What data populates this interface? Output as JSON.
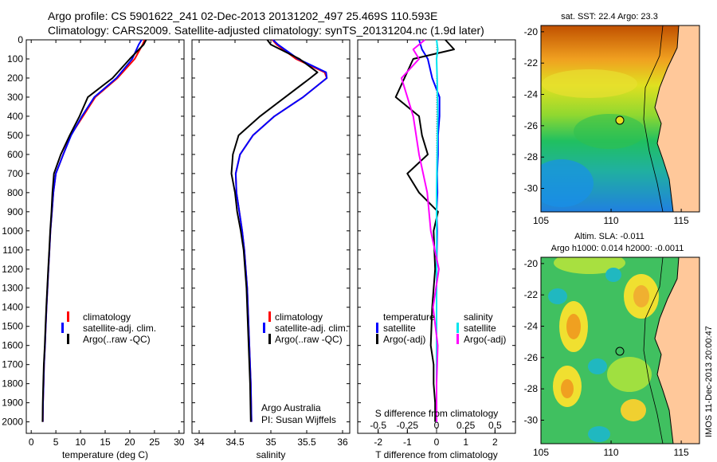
{
  "header": {
    "title_line1": "Argo profile: CS 5901622_241 02-Dec-2013 20131202_497 25.469S 110.593E",
    "title_line2": "Climatology: CARS2009. Satellite-adjusted climatology: synTS_20131204.nc (1.9d later)"
  },
  "colors": {
    "climatology": "#ff0000",
    "satellite": "#0000ff",
    "argo": "#000000",
    "sal_satellite": "#00e5ee",
    "sal_argo": "#ff00ff",
    "land": "#ffc89a"
  },
  "depth_ticks": [
    "0",
    "100",
    "200",
    "300",
    "400",
    "500",
    "600",
    "700",
    "800",
    "900",
    "1000",
    "1100",
    "1200",
    "1300",
    "1400",
    "1500",
    "1600",
    "1700",
    "1800",
    "1900",
    "2000"
  ],
  "panel_temp": {
    "xlabel": "temperature (deg C)",
    "xticks": [
      "0",
      "5",
      "10",
      "15",
      "20",
      "25",
      "30"
    ],
    "legend": [
      "climatology",
      "satellite-adj. clim.",
      "Argo(..raw -QC)"
    ]
  },
  "panel_sal": {
    "xlabel": "salinity",
    "xticks": [
      "34",
      "34.5",
      "35",
      "35.5",
      "36"
    ],
    "legend": [
      "climatology",
      "satellite-adj. clim.",
      "Argo(..raw -QC)"
    ],
    "credit_line1": "Argo Australia",
    "credit_line2": "PI: Susan Wijffels"
  },
  "panel_diff": {
    "xlabel": "T difference from climatology",
    "top_label": "S difference from climatology",
    "t_ticks": [
      "-2",
      "-1",
      "0",
      "1",
      "2"
    ],
    "s_ticks": [
      "-0.5",
      "-0.25",
      "0",
      "0.25",
      "0.5"
    ],
    "legend_temp_title": "temperature",
    "legend_sal_title": "salinity",
    "legend_temp": [
      "satellite",
      "Argo(-adj)"
    ],
    "legend_sal": [
      "satellite",
      "Argo(-adj)"
    ]
  },
  "map_sst": {
    "title": "sat. SST: 22.4  Argo: 23.3",
    "yticks": [
      "-20",
      "-22",
      "-24",
      "-26",
      "-28",
      "-30"
    ],
    "xticks": [
      "105",
      "110",
      "115"
    ]
  },
  "map_sla": {
    "title_line1": "Altim. SLA: -0.011",
    "title_line2": "Argo h1000: 0.014  h2000: -0.0011",
    "yticks": [
      "-20",
      "-22",
      "-24",
      "-26",
      "-28",
      "-30"
    ],
    "xticks": [
      "105",
      "110",
      "115"
    ]
  },
  "side_stamp": "IMOS 11-Dec-2013 20:00:47",
  "chart_data": [
    {
      "type": "line",
      "xlabel": "temperature (deg C)",
      "ylabel": "",
      "xlim": [
        -1,
        31
      ],
      "ylim": [
        2060,
        0
      ],
      "series": [
        {
          "name": "climatology",
          "x": [
            23.0,
            22.6,
            21.0,
            17.5,
            13.0,
            10.5,
            8.0,
            6.5,
            5.0,
            4.5,
            4.2,
            3.9,
            3.7,
            3.5,
            3.3,
            3.1,
            2.95,
            2.8,
            2.6,
            2.5,
            2.4,
            2.35
          ],
          "y": [
            0,
            25,
            100,
            200,
            300,
            400,
            500,
            600,
            700,
            800,
            900,
            1000,
            1100,
            1200,
            1300,
            1400,
            1500,
            1600,
            1700,
            1800,
            1900,
            2000
          ]
        },
        {
          "name": "satellite-adj. clim.",
          "x": [
            22.4,
            21.8,
            20.5,
            17.3,
            12.8,
            10.3,
            8.1,
            6.5,
            5.0,
            4.5,
            4.2,
            3.9,
            3.7,
            3.5,
            3.3,
            3.1,
            2.95,
            2.8,
            2.6,
            2.5,
            2.4,
            2.35
          ],
          "y": [
            0,
            25,
            100,
            200,
            300,
            400,
            500,
            600,
            700,
            800,
            900,
            1000,
            1100,
            1200,
            1300,
            1400,
            1500,
            1600,
            1700,
            1800,
            1900,
            2000
          ]
        },
        {
          "name": "Argo(..raw -QC)",
          "x": [
            23.3,
            22.8,
            20.0,
            16.5,
            11.5,
            9.8,
            7.8,
            6.0,
            4.6,
            4.3,
            4.1,
            3.85,
            3.65,
            3.45,
            3.25,
            3.05,
            2.9,
            2.75,
            2.55,
            2.45,
            2.35,
            2.3
          ],
          "y": [
            0,
            25,
            100,
            200,
            300,
            400,
            500,
            600,
            700,
            800,
            900,
            1000,
            1100,
            1200,
            1300,
            1400,
            1500,
            1600,
            1700,
            1800,
            1900,
            2000
          ]
        }
      ]
    },
    {
      "type": "line",
      "xlabel": "salinity",
      "ylabel": "",
      "xlim": [
        33.9,
        36.1
      ],
      "ylim": [
        2060,
        0
      ],
      "series": [
        {
          "name": "climatology",
          "x": [
            35.02,
            35.08,
            35.35,
            35.75,
            35.78,
            35.45,
            35.05,
            34.75,
            34.57,
            34.51,
            34.52,
            34.56,
            34.6,
            34.63,
            34.65,
            34.67,
            34.68,
            34.69,
            34.7,
            34.71,
            34.72,
            34.73
          ],
          "y": [
            0,
            25,
            100,
            170,
            200,
            300,
            400,
            500,
            600,
            700,
            800,
            900,
            1000,
            1100,
            1200,
            1300,
            1400,
            1500,
            1600,
            1700,
            1800,
            2000
          ]
        },
        {
          "name": "satellite-adj. clim.",
          "x": [
            35.03,
            35.1,
            35.38,
            35.77,
            35.78,
            35.45,
            35.05,
            34.75,
            34.57,
            34.51,
            34.52,
            34.56,
            34.6,
            34.63,
            34.65,
            34.67,
            34.68,
            34.69,
            34.7,
            34.71,
            34.72,
            34.73
          ],
          "y": [
            0,
            25,
            100,
            170,
            200,
            300,
            400,
            500,
            600,
            700,
            800,
            900,
            1000,
            1100,
            1200,
            1300,
            1400,
            1500,
            1600,
            1700,
            1800,
            2000
          ]
        },
        {
          "name": "Argo(..raw -QC)",
          "x": [
            34.95,
            35.0,
            35.4,
            35.65,
            35.55,
            35.2,
            34.85,
            34.55,
            34.47,
            34.45,
            34.5,
            34.53,
            34.58,
            34.62,
            34.64,
            34.66,
            34.67,
            34.68,
            34.69,
            34.7,
            34.71,
            34.72
          ],
          "y": [
            0,
            25,
            100,
            170,
            200,
            300,
            400,
            500,
            600,
            700,
            800,
            900,
            1000,
            1100,
            1200,
            1300,
            1400,
            1500,
            1600,
            1700,
            1800,
            2000
          ]
        }
      ]
    },
    {
      "type": "line",
      "xlabel": "T difference from climatology",
      "ylabel": "",
      "xlim": [
        -2.7,
        2.7
      ],
      "ylim": [
        2060,
        0
      ],
      "series": [
        {
          "name": "temperature satellite",
          "x": [
            -0.6,
            -0.5,
            -0.3,
            -0.15,
            0.1,
            0.1,
            0.05,
            0.05,
            0.02,
            0.03,
            0.0,
            0.02,
            0.0,
            0.0,
            0.0,
            0.0,
            0.0,
            0.0,
            0.0
          ],
          "y": [
            0,
            50,
            100,
            200,
            300,
            400,
            500,
            600,
            700,
            800,
            900,
            1000,
            1200,
            1400,
            1600,
            1700,
            1800,
            1900,
            2000
          ]
        },
        {
          "name": "temperature Argo(-adj)",
          "x": [
            0.3,
            0.6,
            -0.8,
            -1.1,
            -1.4,
            -0.6,
            -0.5,
            -0.3,
            -1.0,
            -0.6,
            0.05,
            -0.1,
            -0.05,
            -0.15,
            -0.2,
            -0.1,
            -0.1,
            -0.05,
            -0.05
          ],
          "y": [
            0,
            50,
            100,
            200,
            300,
            400,
            500,
            600,
            700,
            800,
            900,
            1000,
            1200,
            1400,
            1600,
            1700,
            1800,
            1900,
            2000
          ]
        }
      ]
    },
    {
      "type": "line",
      "xlabel": "S difference from climatology",
      "ylabel": "",
      "xlim": [
        -0.675,
        0.675
      ],
      "ylim": [
        2060,
        0
      ],
      "series": [
        {
          "name": "salinity satellite",
          "x": [
            0.0,
            0.01,
            0.0,
            0.005,
            0.01,
            0.005,
            0.0,
            0.0,
            0.0,
            0.0,
            0.0,
            0.0,
            0.0
          ],
          "y": [
            0,
            50,
            100,
            200,
            400,
            600,
            800,
            1000,
            1200,
            1400,
            1600,
            1800,
            2000
          ]
        },
        {
          "name": "salinity Argo(-adj)",
          "x": [
            -0.1,
            -0.2,
            -0.15,
            -0.3,
            -0.2,
            -0.15,
            -0.08,
            -0.05,
            0.02,
            -0.03,
            0.01,
            0.0,
            0.0
          ],
          "y": [
            0,
            50,
            100,
            200,
            400,
            600,
            800,
            1000,
            1200,
            1400,
            1600,
            1800,
            2000
          ]
        }
      ]
    }
  ]
}
